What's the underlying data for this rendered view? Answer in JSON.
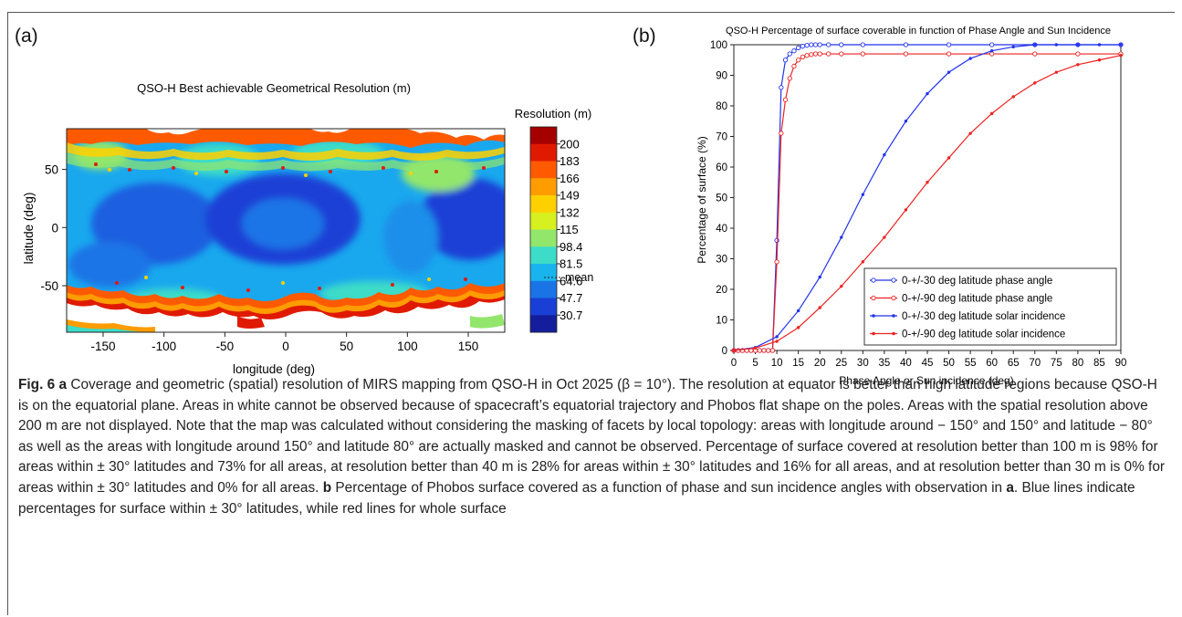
{
  "panel_a": {
    "label": "(a)",
    "title": "QSO-H  Best achievable Geometrical Resolution (m)",
    "xlabel": "longitude (deg)",
    "ylabel": "latitude (deg)",
    "xticks": [
      "-150",
      "-100",
      "-50",
      "0",
      "50",
      "100",
      "150"
    ],
    "yticks": [
      "50",
      "0",
      "-50"
    ],
    "colorbar_title": "Resolution (m)",
    "colorbar_labels": [
      "200",
      "183",
      "166",
      "149",
      "132",
      "115",
      "98.4",
      "81.5",
      "64.6",
      "47.7",
      "30.7"
    ],
    "colorbar_colors": [
      "#a50000",
      "#e01a00",
      "#ff5a00",
      "#ff9c00",
      "#ffd000",
      "#d6f020",
      "#92e66c",
      "#3cdcc8",
      "#19b4ee",
      "#1a74e6",
      "#1a3fd6",
      "#141e9c"
    ],
    "mean_label": "mean"
  },
  "panel_b": {
    "label": "(b)"
  },
  "chart_data": {
    "type": "line",
    "title": "QSO-H Percentage of surface coverable in function of Phase Angle and Sun Incidence",
    "xlabel": "Phase Angle or Sun incidence (deg)",
    "ylabel": "Percentage of surface (%)",
    "xlim": [
      0,
      90
    ],
    "ylim": [
      0,
      100
    ],
    "xticks": [
      0,
      5,
      10,
      15,
      20,
      25,
      30,
      35,
      40,
      45,
      50,
      55,
      60,
      65,
      70,
      75,
      80,
      85,
      90
    ],
    "yticks": [
      0,
      10,
      20,
      30,
      40,
      50,
      60,
      70,
      80,
      90,
      100
    ],
    "legend_position": "bottom-right",
    "series": [
      {
        "name": "0-+/-30 deg latitude phase angle",
        "color": "#2233ee",
        "marker": "open-circle",
        "x": [
          0,
          1,
          2,
          3,
          4,
          5,
          6,
          7,
          8,
          9,
          10,
          11,
          12,
          13,
          14,
          15,
          16,
          17,
          18,
          19,
          20,
          22,
          25,
          30,
          40,
          50,
          60,
          70,
          80,
          90
        ],
        "y": [
          0,
          0,
          0,
          0,
          0,
          0,
          0,
          0,
          0,
          0,
          36,
          86,
          95,
          97,
          98,
          99,
          99.5,
          99.8,
          100,
          100,
          100,
          100,
          100,
          100,
          100,
          100,
          100,
          100,
          100,
          100
        ]
      },
      {
        "name": "0-+/-90 deg latitude phase angle",
        "color": "#ee2222",
        "marker": "open-circle",
        "x": [
          0,
          1,
          2,
          3,
          4,
          5,
          6,
          7,
          8,
          9,
          10,
          11,
          12,
          13,
          14,
          15,
          16,
          17,
          18,
          19,
          20,
          22,
          25,
          30,
          40,
          50,
          60,
          70,
          80,
          90
        ],
        "y": [
          0,
          0,
          0,
          0,
          0,
          0,
          0,
          0,
          0,
          0,
          29,
          71,
          82,
          89,
          93,
          95,
          96,
          96.5,
          96.8,
          97,
          97,
          97,
          97,
          97,
          97,
          97,
          97,
          97,
          97,
          97
        ]
      },
      {
        "name": "0-+/-30 deg latitude solar incidence",
        "color": "#2233ee",
        "marker": "filled-dot",
        "x": [
          0,
          5,
          10,
          15,
          20,
          25,
          30,
          35,
          40,
          45,
          50,
          55,
          60,
          65,
          70,
          75,
          80,
          85,
          90
        ],
        "y": [
          0,
          1,
          4.5,
          13,
          24,
          37,
          51,
          64,
          75,
          84,
          91,
          95.5,
          98,
          99.3,
          100,
          100,
          100,
          100,
          100
        ]
      },
      {
        "name": "0-+/-90 deg latitude solar incidence",
        "color": "#ee2222",
        "marker": "filled-dot",
        "x": [
          0,
          5,
          10,
          15,
          20,
          25,
          30,
          35,
          40,
          45,
          50,
          55,
          60,
          65,
          70,
          75,
          80,
          85,
          90
        ],
        "y": [
          0,
          0.8,
          3,
          7.5,
          14,
          21,
          29,
          37,
          46,
          55,
          63,
          71,
          77.5,
          83,
          87.5,
          91,
          93.5,
          95,
          96.5
        ]
      }
    ]
  },
  "caption": {
    "fig_label": "Fig. 6",
    "a_label": "a",
    "text_a": " Coverage and geometric (spatial) resolution of MIRS mapping from QSO-H in Oct 2025 (β = 10°). The resolution at equator is better than high latitude regions because QSO-H is on the equatorial plane. Areas in white cannot be observed because of spacecraft’s equatorial trajectory and Phobos flat shape on the poles. Areas with the spatial resolution above 200 m are not displayed. Note that the map was calculated without considering the masking of facets by local topology: areas with longitude around − 150° and 150° and latitude − 80° as well as the areas with longitude around 150° and latitude 80° are actually masked and cannot be observed. Percentage of surface covered at resolution better than 100 m is 98% for areas within ± 30° latitudes and 73% for all areas, at resolution better than 40 m is 28% for areas within ± 30° latitudes and 16% for all areas, and at resolution better than 30 m is 0% for areas within ± 30° latitudes and 0% for all areas. ",
    "b_label": "b",
    "text_b_1": " Percentage of Phobos surface covered as a function of phase and sun incidence angles with observation in ",
    "a_ref": "a",
    "text_b_2": ". Blue lines indicate percentages for surface within ± 30° latitudes, while red lines for whole surface"
  }
}
